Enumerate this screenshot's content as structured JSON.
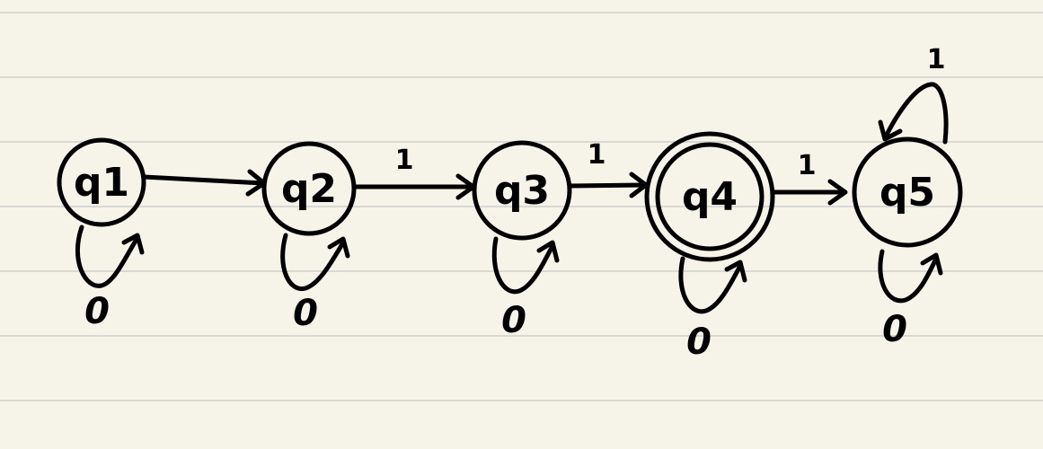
{
  "diagram": {
    "states": [
      {
        "id": "q1",
        "label": "q1",
        "accepting": false
      },
      {
        "id": "q2",
        "label": "q2",
        "accepting": false
      },
      {
        "id": "q3",
        "label": "q3",
        "accepting": false
      },
      {
        "id": "q4",
        "label": "q4",
        "accepting": true
      },
      {
        "id": "q5",
        "label": "q5",
        "accepting": false
      }
    ],
    "transitions": [
      {
        "from": "q1",
        "to": "q2",
        "symbol": ""
      },
      {
        "from": "q2",
        "to": "q3",
        "symbol": "1"
      },
      {
        "from": "q3",
        "to": "q4",
        "symbol": "1"
      },
      {
        "from": "q4",
        "to": "q5",
        "symbol": "1"
      }
    ],
    "self_loops": [
      {
        "state": "q1",
        "symbol": "0"
      },
      {
        "state": "q2",
        "symbol": "0"
      },
      {
        "state": "q3",
        "symbol": "0"
      },
      {
        "state": "q4",
        "symbol": "0"
      },
      {
        "state": "q5",
        "symbol": "0"
      },
      {
        "state": "q5",
        "symbol": "1"
      }
    ]
  }
}
